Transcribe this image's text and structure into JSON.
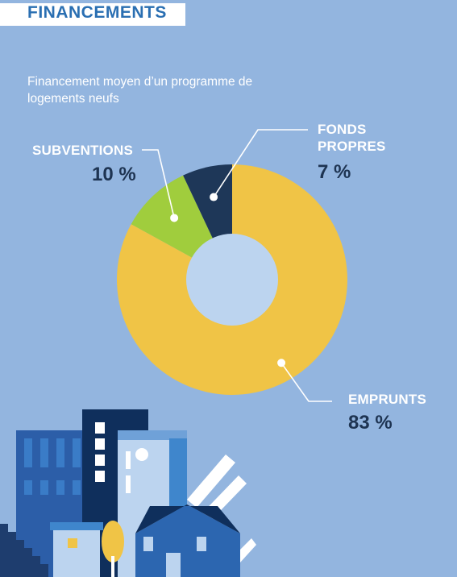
{
  "header": {
    "title": "FINANCEMENTS"
  },
  "chart_data": {
    "type": "pie",
    "title": "Financement moyen d’un programme de logements neufs",
    "series": [
      {
        "label_line1": "EMPRUNTS",
        "label_line2": "",
        "value": 83,
        "value_label": "83 %",
        "color": "#f0c446"
      },
      {
        "label_line1": "SUBVENTIONS",
        "label_line2": "",
        "value": 10,
        "value_label": "10 %",
        "color": "#a0cd3d"
      },
      {
        "label_line1": "FONDS",
        "label_line2": "PROPRES",
        "value": 7,
        "value_label": "7 %",
        "color": "#1e3758"
      }
    ],
    "donut": true,
    "hole_color": "#bcd4ef",
    "legend": "none"
  },
  "colors": {
    "background": "#93b5df",
    "title": "#2a6fb2",
    "value_text": "#1e3452"
  }
}
